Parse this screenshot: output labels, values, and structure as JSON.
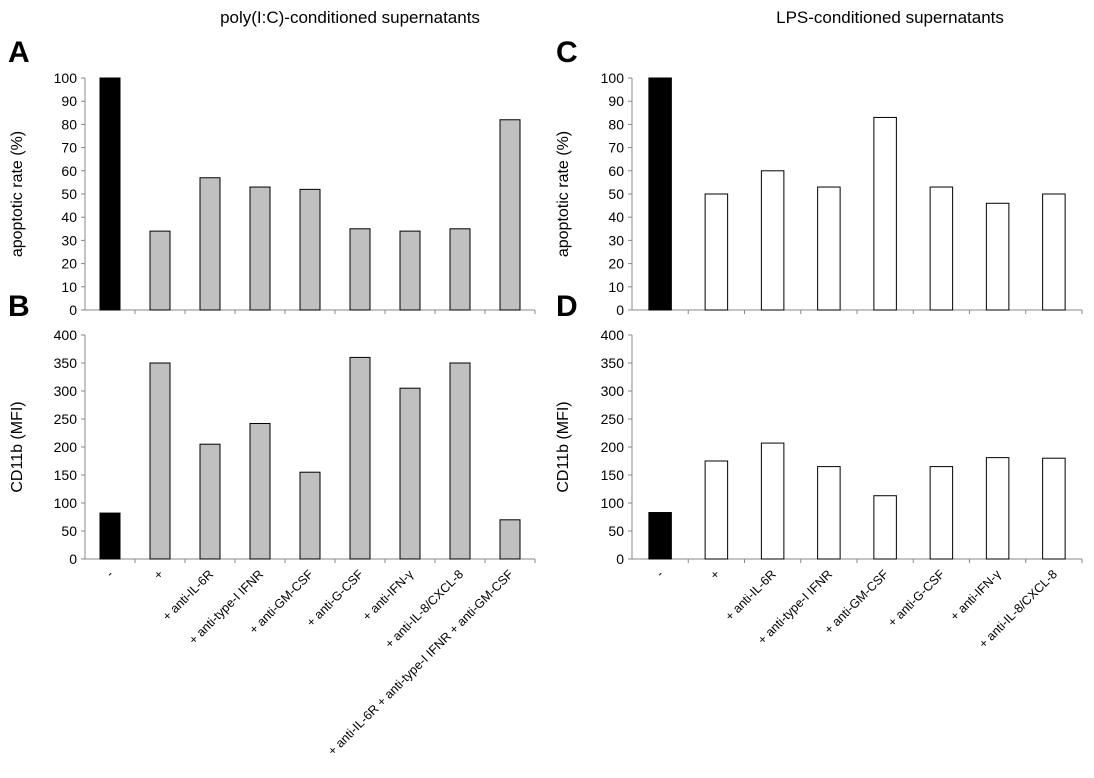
{
  "titles": {
    "left": "poly(I:C)-conditioned supernatants",
    "right": "LPS-conditioned supernatants"
  },
  "panel_labels": {
    "a": "A",
    "b": "B",
    "c": "C",
    "d": "D"
  },
  "colors": {
    "black": "#000000",
    "gray": "#c0c0c0",
    "white": "#ffffff"
  },
  "chart_data": [
    {
      "id": "A",
      "type": "bar",
      "title": "",
      "xlabel": "",
      "ylabel": "apoptotic rate (%)",
      "ylim": [
        0,
        100
      ],
      "yticks": [
        0,
        10,
        20,
        30,
        40,
        50,
        60,
        70,
        80,
        90,
        100
      ],
      "categories": [
        "-",
        "+",
        "+ anti-IL-6R",
        "+ anti-type-I IFNR",
        "+ anti-GM-CSF",
        "+ anti-G-CSF",
        "+ anti-IFN-γ",
        "+ anti-IL-8/CXCL-8",
        "+ anti-IL-6R + anti-type-I IFNR + anti-GM-CSF"
      ],
      "values": [
        100,
        34,
        57,
        53,
        52,
        35,
        34,
        35,
        82
      ],
      "bar_colors": [
        "#000000",
        "#c0c0c0",
        "#c0c0c0",
        "#c0c0c0",
        "#c0c0c0",
        "#c0c0c0",
        "#c0c0c0",
        "#c0c0c0",
        "#c0c0c0"
      ],
      "show_xticklabels": false
    },
    {
      "id": "B",
      "type": "bar",
      "title": "",
      "xlabel": "",
      "ylabel": "CD11b (MFI)",
      "ylim": [
        0,
        400
      ],
      "yticks": [
        0,
        50,
        100,
        150,
        200,
        250,
        300,
        350,
        400
      ],
      "categories": [
        "-",
        "+",
        "+ anti-IL-6R",
        "+ anti-type-I IFNR",
        "+ anti-GM-CSF",
        "+ anti-G-CSF",
        "+ anti-IFN-γ",
        "+ anti-IL-8/CXCL-8",
        "+ anti-IL-6R + anti-type-I IFNR + anti-GM-CSF"
      ],
      "values": [
        82,
        350,
        205,
        242,
        155,
        360,
        305,
        350,
        70
      ],
      "bar_colors": [
        "#000000",
        "#c0c0c0",
        "#c0c0c0",
        "#c0c0c0",
        "#c0c0c0",
        "#c0c0c0",
        "#c0c0c0",
        "#c0c0c0",
        "#c0c0c0"
      ],
      "show_xticklabels": true
    },
    {
      "id": "C",
      "type": "bar",
      "title": "",
      "xlabel": "",
      "ylabel": "apoptotic rate (%)",
      "ylim": [
        0,
        100
      ],
      "yticks": [
        0,
        10,
        20,
        30,
        40,
        50,
        60,
        70,
        80,
        90,
        100
      ],
      "categories": [
        "-",
        "+",
        "+ anti-IL-6R",
        "+ anti-type-I IFNR",
        "+ anti-GM-CSF",
        "+ anti-G-CSF",
        "+ anti-IFN-γ",
        "+ anti-IL-8/CXCL-8"
      ],
      "values": [
        100,
        50,
        60,
        53,
        83,
        53,
        46,
        50
      ],
      "bar_colors": [
        "#000000",
        "#ffffff",
        "#ffffff",
        "#ffffff",
        "#ffffff",
        "#ffffff",
        "#ffffff",
        "#ffffff"
      ],
      "show_xticklabels": false
    },
    {
      "id": "D",
      "type": "bar",
      "title": "",
      "xlabel": "",
      "ylabel": "CD11b (MFI)",
      "ylim": [
        0,
        400
      ],
      "yticks": [
        0,
        50,
        100,
        150,
        200,
        250,
        300,
        350,
        400
      ],
      "categories": [
        "-",
        "+",
        "+ anti-IL-6R",
        "+ anti-type-I IFNR",
        "+ anti-GM-CSF",
        "+ anti-G-CSF",
        "+ anti-IFN-γ",
        "+ anti-IL-8/CXCL-8"
      ],
      "values": [
        83,
        175,
        207,
        165,
        113,
        165,
        181,
        180
      ],
      "bar_colors": [
        "#000000",
        "#ffffff",
        "#ffffff",
        "#ffffff",
        "#ffffff",
        "#ffffff",
        "#ffffff",
        "#ffffff"
      ],
      "show_xticklabels": true
    }
  ]
}
